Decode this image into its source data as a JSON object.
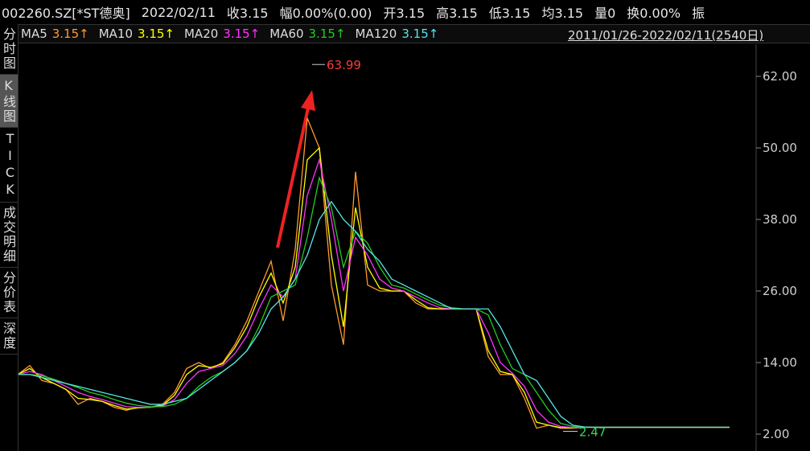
{
  "header": {
    "items": [
      "002260.SZ[*ST德奥]",
      "2022/02/11",
      "收3.15",
      "幅0.00%(0.00)",
      "开3.15",
      "高3.15",
      "低3.15",
      "均3.15",
      "量0",
      "换0.00%",
      "振"
    ],
    "date_range": "2011/01/26-2022/02/11(2540日)"
  },
  "sidebar": {
    "tabs": [
      "分时图",
      "K线图",
      "TICK",
      "成交明细",
      "分价表",
      "深度"
    ],
    "selected": 1
  },
  "chart_data": {
    "type": "line",
    "categories": [
      null,
      null,
      null,
      null,
      null,
      null,
      null,
      null,
      null,
      null,
      null,
      null,
      null,
      null,
      null,
      null,
      null,
      null,
      null,
      null,
      null,
      null,
      null,
      null,
      null,
      null,
      null,
      null,
      null,
      null,
      null,
      null,
      null,
      null,
      null,
      null,
      null,
      null,
      null,
      null,
      null,
      null,
      null,
      null,
      null,
      null,
      null,
      null,
      null,
      null,
      null,
      null,
      null,
      null,
      null,
      null,
      null,
      null,
      null,
      null
    ],
    "series": [
      {
        "name": "MA5",
        "color": "#ff9a2e",
        "last_label": "3.15↑",
        "values": [
          12,
          13.5,
          11,
          10.5,
          9.5,
          7,
          8,
          7.5,
          6.5,
          6,
          6.5,
          6.5,
          7,
          9,
          13,
          14,
          13,
          14,
          17,
          21,
          26,
          31,
          21,
          33,
          55,
          50,
          27,
          17,
          46,
          27,
          26,
          26,
          26,
          24,
          23,
          23,
          23,
          23,
          23,
          15,
          12,
          12,
          8,
          3,
          3.5,
          3,
          3,
          3.15,
          3.15,
          3.15,
          3.15,
          3.15,
          3.15,
          3.15,
          3.15,
          3.15,
          3.15,
          3.15,
          3.15,
          3.15
        ]
      },
      {
        "name": "MA10",
        "color": "#ffff00",
        "last_label": "3.15↑",
        "values": [
          12,
          13,
          11.5,
          10.5,
          9.5,
          8,
          7.8,
          7.5,
          6.8,
          6.2,
          6.4,
          6.5,
          6.8,
          8.5,
          12,
          13.5,
          13.2,
          13.8,
          16.5,
          20,
          25,
          29,
          24,
          30,
          48,
          50,
          32,
          20,
          40,
          30,
          26.5,
          26,
          26,
          24.5,
          23.2,
          23,
          23,
          23,
          23,
          16,
          12.5,
          12,
          9,
          4,
          3.5,
          3.1,
          3.05,
          3.15,
          3.15,
          3.15,
          3.15,
          3.15,
          3.15,
          3.15,
          3.15,
          3.15,
          3.15,
          3.15,
          3.15,
          3.15
        ]
      },
      {
        "name": "MA20",
        "color": "#ff33ff",
        "last_label": "3.15↑",
        "values": [
          12,
          12.5,
          12,
          11,
          10,
          9,
          8.3,
          7.8,
          7.2,
          6.6,
          6.5,
          6.5,
          6.7,
          7.8,
          10.5,
          12.5,
          13,
          13.5,
          15.5,
          18.5,
          23,
          27,
          25,
          28,
          42,
          48,
          38,
          26,
          35,
          32,
          28,
          26.5,
          26,
          25,
          24,
          23.2,
          23,
          23,
          23,
          19,
          14,
          12.2,
          10,
          6,
          4,
          3.3,
          3.1,
          3.15,
          3.15,
          3.15,
          3.15,
          3.15,
          3.15,
          3.15,
          3.15,
          3.15,
          3.15,
          3.15,
          3.15,
          3.15
        ]
      },
      {
        "name": "MA60",
        "color": "#22cc22",
        "last_label": "3.15↑",
        "values": [
          12,
          12,
          11.8,
          11.2,
          10.5,
          9.8,
          9,
          8.5,
          7.8,
          7.2,
          6.8,
          6.6,
          6.6,
          7,
          8,
          10,
          11.5,
          12.5,
          14,
          16,
          20,
          25,
          26,
          27,
          35,
          45,
          40,
          30,
          36,
          34,
          30,
          27,
          26.5,
          25.5,
          24.5,
          23.6,
          23.2,
          23,
          23,
          22,
          17,
          13,
          12,
          9,
          6,
          3.8,
          3.3,
          3.15,
          3.15,
          3.15,
          3.15,
          3.15,
          3.15,
          3.15,
          3.15,
          3.15,
          3.15,
          3.15,
          3.15,
          3.15
        ]
      },
      {
        "name": "MA120",
        "color": "#55e6e6",
        "last_label": "3.15↑",
        "values": [
          12,
          12,
          11.5,
          11,
          10.5,
          10,
          9.5,
          9,
          8.5,
          8,
          7.5,
          7,
          7,
          7.5,
          8,
          9.5,
          11,
          12.5,
          14,
          16,
          19,
          23,
          25,
          28,
          32,
          38,
          41,
          38,
          36,
          33,
          31,
          28,
          27,
          26,
          25,
          24,
          23,
          23,
          23,
          23,
          20,
          16,
          12,
          11,
          8,
          5,
          3.5,
          3.2,
          3.15,
          3.15,
          3.15,
          3.15,
          3.15,
          3.15,
          3.15,
          3.15,
          3.15,
          3.15,
          3.15,
          3.15
        ]
      }
    ],
    "ylim": [
      -0.83,
      67.39
    ],
    "yticks": [
      {
        "value": 62,
        "label": "62.00"
      },
      {
        "value": 50,
        "label": "50.00"
      },
      {
        "value": 38,
        "label": "38.00"
      },
      {
        "value": 26,
        "label": "26.00"
      },
      {
        "value": 14,
        "label": "14.00"
      },
      {
        "value": 2,
        "label": "2.00"
      }
    ],
    "high_label": {
      "value": 63.99,
      "label": "63.99"
    },
    "low_label": {
      "value": 2.47,
      "label": "2.47"
    }
  }
}
